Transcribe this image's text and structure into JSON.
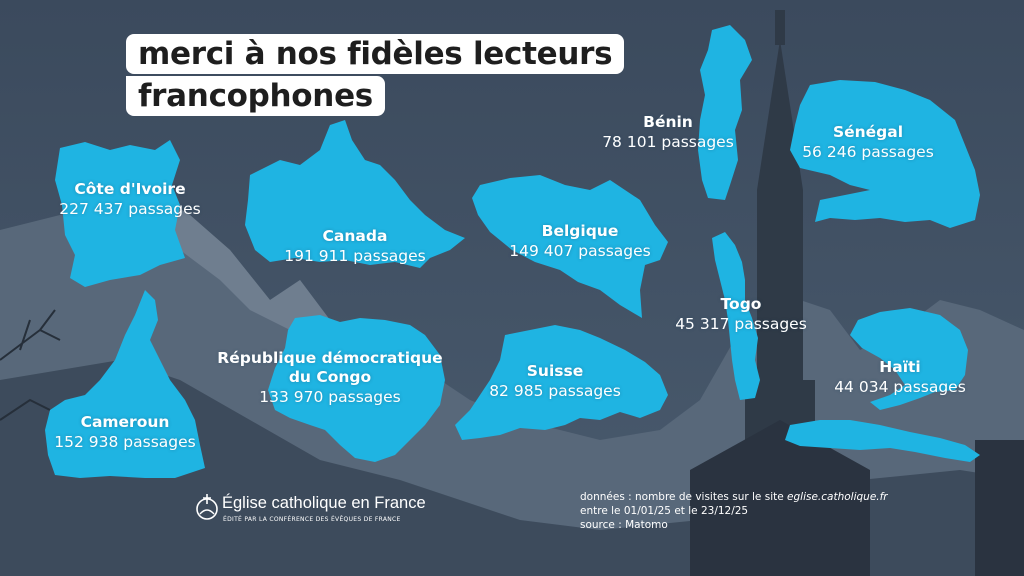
{
  "title": {
    "line1": "merci à nos fidèles lecteurs",
    "line2": "francophones"
  },
  "colors": {
    "accent": "#1fb4e2",
    "background": "#37475b",
    "title_bg": "#ffffff"
  },
  "countries": [
    {
      "name": "Côte d'Ivoire",
      "count": "227 437 passages"
    },
    {
      "name": "Canada",
      "count": "191 911 passages"
    },
    {
      "name": "Belgique",
      "count": "149 407 passages"
    },
    {
      "name": "Bénin",
      "count": "78 101 passages"
    },
    {
      "name": "Sénégal",
      "count": "56 246 passages"
    },
    {
      "name": "Togo",
      "count": "45 317 passages"
    },
    {
      "name": "Haïti",
      "count": "44 034 passages"
    },
    {
      "name": "République démocratique",
      "name2": "du Congo",
      "count": "133 970 passages"
    },
    {
      "name": "Suisse",
      "count": "82 985 passages"
    },
    {
      "name": "Cameroun",
      "count": "152 938 passages"
    }
  ],
  "logo": {
    "name": "Église catholique en France",
    "subtitle": "ÉDITÉ PAR LA CONFÉRENCE DES ÉVÊQUES DE FRANCE",
    "icon": "church-logo-icon"
  },
  "source": {
    "line1_prefix": "données : nombre de visites sur le site ",
    "line1_site": "eglise.catholique.fr",
    "line2": "entre le 01/01/25 et le 23/12/25",
    "line3": "source : Matomo"
  }
}
